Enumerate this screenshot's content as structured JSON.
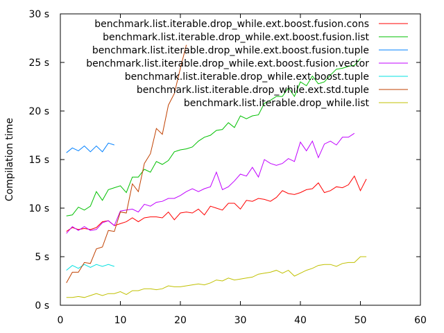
{
  "chart_data": {
    "type": "line",
    "title": "",
    "xlabel": "",
    "ylabel": "Compilation time",
    "xlim": [
      0,
      60
    ],
    "ylim": [
      0,
      30
    ],
    "x_ticks": [
      "0",
      "10",
      "20",
      "30",
      "40",
      "50",
      "60"
    ],
    "y_ticks": [
      "0 s",
      "5 s",
      "10 s",
      "15 s",
      "20 s",
      "25 s",
      "30 s"
    ],
    "grid": false,
    "legend_position": "top-right",
    "series": [
      {
        "name": "benchmark.list.iterable.drop_while.ext.boost.fusion.cons",
        "color": "#ff0000",
        "x": [
          1,
          2,
          3,
          4,
          5,
          6,
          7,
          8,
          9,
          10,
          11,
          12,
          13,
          14,
          15,
          16,
          17,
          18,
          19,
          20,
          21,
          22,
          23,
          24,
          25,
          26,
          27,
          28,
          29,
          30,
          31,
          32,
          33,
          34,
          35,
          36,
          37,
          38,
          39,
          40,
          41,
          42,
          43,
          44,
          45,
          46,
          47,
          48,
          49,
          50,
          51
        ],
        "y": [
          7.6,
          8.0,
          7.8,
          7.9,
          7.8,
          8.0,
          8.6,
          8.7,
          8.2,
          8.4,
          8.6,
          9.0,
          8.6,
          9.0,
          9.1,
          9.1,
          9.0,
          9.6,
          8.8,
          9.5,
          9.6,
          9.5,
          9.9,
          9.3,
          10.2,
          10.0,
          9.8,
          10.5,
          10.5,
          9.9,
          10.8,
          10.7,
          11.0,
          10.9,
          10.7,
          11.1,
          11.8,
          11.5,
          11.4,
          11.6,
          11.9,
          12.0,
          12.6,
          11.6,
          11.8,
          12.2,
          12.1,
          12.4,
          13.3,
          11.8,
          13.0
        ]
      },
      {
        "name": "benchmark.list.iterable.drop_while.ext.boost.fusion.list",
        "color": "#00c000",
        "x": [
          1,
          2,
          3,
          4,
          5,
          6,
          7,
          8,
          9,
          10,
          11,
          12,
          13,
          14,
          15,
          16,
          17,
          18,
          19,
          20,
          21,
          22,
          23,
          24,
          25,
          26,
          27,
          28,
          29,
          30,
          31,
          32,
          33,
          34,
          35,
          36,
          37,
          38,
          39,
          40,
          41,
          42,
          43,
          44,
          45,
          46,
          47,
          48,
          49,
          50
        ],
        "y": [
          9.2,
          9.3,
          10.1,
          9.8,
          10.2,
          11.7,
          10.8,
          11.9,
          12.1,
          12.3,
          11.6,
          13.2,
          13.2,
          14.0,
          13.7,
          14.8,
          14.5,
          14.9,
          15.8,
          16.0,
          16.1,
          16.3,
          16.9,
          17.3,
          17.5,
          18.0,
          18.1,
          18.8,
          18.3,
          19.5,
          19.2,
          19.5,
          19.6,
          20.8,
          21.1,
          21.5,
          21.5,
          22.4,
          21.5,
          23.0,
          22.6,
          23.6,
          22.8,
          23.0,
          23.7,
          24.3,
          24.4,
          24.6,
          24.7,
          25.4
        ]
      },
      {
        "name": "benchmark.list.iterable.drop_while.ext.boost.fusion.tuple",
        "color": "#0080ff",
        "x": [
          1,
          2,
          3,
          4,
          5,
          6,
          7,
          8,
          9
        ],
        "y": [
          15.7,
          16.2,
          15.9,
          16.4,
          15.8,
          16.4,
          15.8,
          16.7,
          16.5
        ]
      },
      {
        "name": "benchmark.list.iterable.drop_while.ext.boost.fusion.vector",
        "color": "#c000ff",
        "x": [
          1,
          2,
          3,
          4,
          5,
          6,
          7,
          8,
          9,
          10,
          11,
          12,
          13,
          14,
          15,
          16,
          17,
          18,
          19,
          20,
          21,
          22,
          23,
          24,
          25,
          26,
          27,
          28,
          29,
          30,
          31,
          32,
          33,
          34,
          35,
          36,
          37,
          38,
          39,
          40,
          41,
          42,
          43,
          44,
          45,
          46,
          47,
          48,
          49
        ],
        "y": [
          7.4,
          8.1,
          7.7,
          8.1,
          7.7,
          7.8,
          8.5,
          8.7,
          8.2,
          9.7,
          9.8,
          9.9,
          9.6,
          10.4,
          10.2,
          10.6,
          10.7,
          11.0,
          11.0,
          11.3,
          11.7,
          12.0,
          11.7,
          12.0,
          12.2,
          13.7,
          11.9,
          12.2,
          12.8,
          13.5,
          13.3,
          14.2,
          13.2,
          15.0,
          14.6,
          14.4,
          14.6,
          15.1,
          14.8,
          16.8,
          15.9,
          16.9,
          15.2,
          16.6,
          16.9,
          16.5,
          17.3,
          17.3,
          17.7
        ]
      },
      {
        "name": "benchmark.list.iterable.drop_while.ext.boost.tuple",
        "color": "#00e0e0",
        "x": [
          1,
          2,
          3,
          4,
          5,
          6,
          7,
          8,
          9
        ],
        "y": [
          3.6,
          4.1,
          3.8,
          4.2,
          3.9,
          4.2,
          4.0,
          4.2,
          4.0
        ]
      },
      {
        "name": "benchmark.list.iterable.drop_while.ext.std.tuple",
        "color": "#c04000",
        "x": [
          1,
          2,
          3,
          4,
          5,
          6,
          7,
          8,
          9,
          10,
          11,
          12,
          13,
          14,
          15,
          16,
          17,
          18,
          19,
          20,
          21
        ],
        "y": [
          2.3,
          3.4,
          3.4,
          4.4,
          4.3,
          5.8,
          6.0,
          7.7,
          7.6,
          9.6,
          9.5,
          12.5,
          11.7,
          14.6,
          15.6,
          18.2,
          17.6,
          20.6,
          21.8,
          24.4,
          26.8
        ]
      },
      {
        "name": "benchmark.list.iterable.drop_while.list",
        "color": "#c0c000",
        "x": [
          1,
          2,
          3,
          4,
          5,
          6,
          7,
          8,
          9,
          10,
          11,
          12,
          13,
          14,
          15,
          16,
          17,
          18,
          19,
          20,
          21,
          22,
          23,
          24,
          25,
          26,
          27,
          28,
          29,
          30,
          31,
          32,
          33,
          34,
          35,
          36,
          37,
          38,
          39,
          40,
          41,
          42,
          43,
          44,
          45,
          46,
          47,
          48,
          49,
          50,
          51
        ],
        "y": [
          0.8,
          0.8,
          0.9,
          0.8,
          1.0,
          1.2,
          1.0,
          1.2,
          1.2,
          1.4,
          1.1,
          1.5,
          1.5,
          1.7,
          1.7,
          1.6,
          1.7,
          2.0,
          1.9,
          1.9,
          2.0,
          2.1,
          2.2,
          2.1,
          2.3,
          2.6,
          2.5,
          2.8,
          2.6,
          2.7,
          2.8,
          2.9,
          3.2,
          3.3,
          3.4,
          3.6,
          3.3,
          3.6,
          3.0,
          3.3,
          3.6,
          3.8,
          4.1,
          4.2,
          4.2,
          4.0,
          4.3,
          4.4,
          4.4,
          5.0,
          5.0
        ]
      }
    ]
  }
}
